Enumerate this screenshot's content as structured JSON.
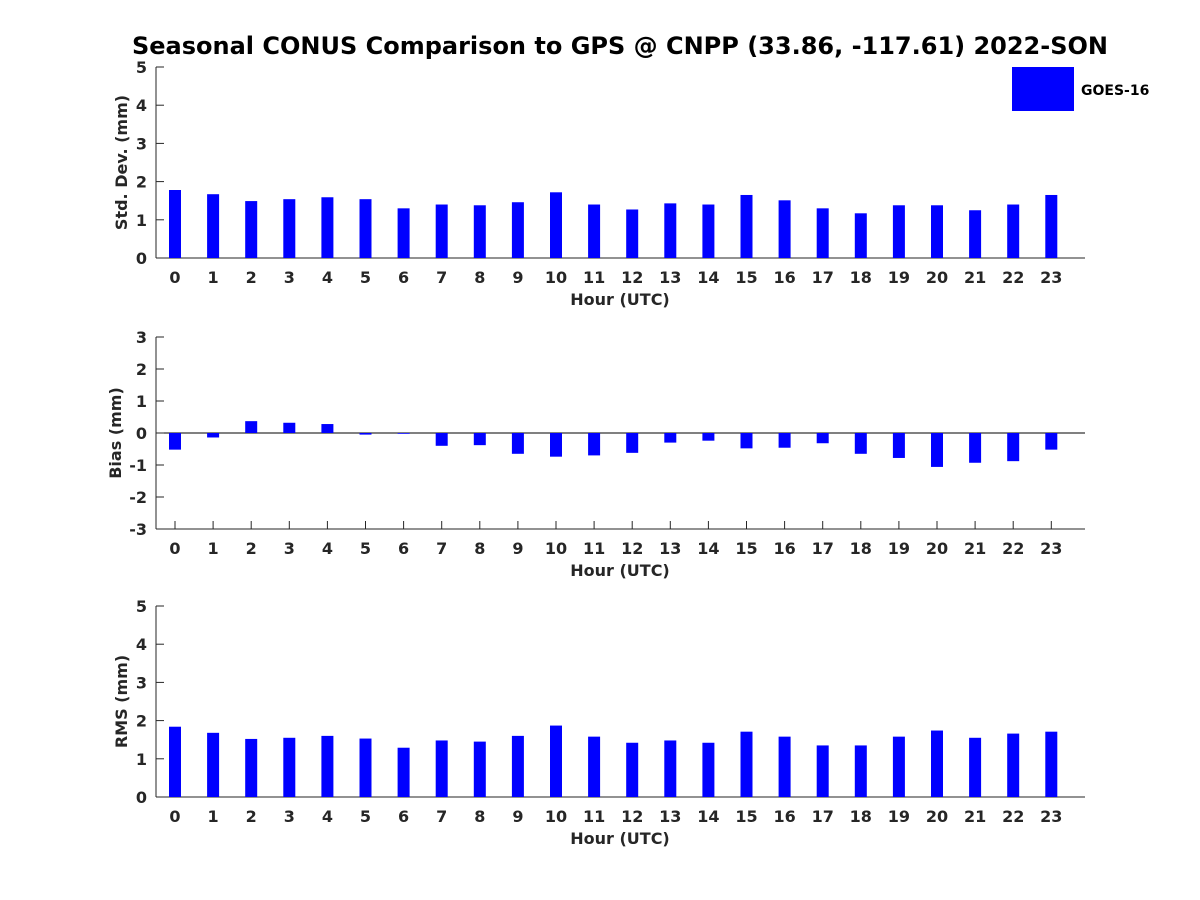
{
  "title": "Seasonal CONUS Comparison to GPS @ CNPP (33.86, -117.61) 2022-SON",
  "legend": {
    "label": "GOES-16",
    "color": "#0000ff"
  },
  "chart_data": [
    {
      "type": "bar",
      "xlabel": "Hour (UTC)",
      "ylabel": "Std. Dev. (mm)",
      "ylim": [
        0,
        5
      ],
      "yticks": [
        0,
        1,
        2,
        3,
        4,
        5
      ],
      "categories": [
        0,
        1,
        2,
        3,
        4,
        5,
        6,
        7,
        8,
        9,
        10,
        11,
        12,
        13,
        14,
        15,
        16,
        17,
        18,
        19,
        20,
        21,
        22,
        23
      ],
      "series": [
        {
          "name": "GOES-16",
          "color": "#0000ff",
          "values": [
            1.78,
            1.67,
            1.49,
            1.54,
            1.59,
            1.54,
            1.3,
            1.4,
            1.38,
            1.46,
            1.72,
            1.4,
            1.27,
            1.43,
            1.4,
            1.65,
            1.51,
            1.3,
            1.17,
            1.38,
            1.38,
            1.25,
            1.4,
            1.65
          ]
        }
      ],
      "legend": "top-right",
      "grid": false
    },
    {
      "type": "bar",
      "xlabel": "Hour (UTC)",
      "ylabel": "Bias (mm)",
      "ylim": [
        -3,
        3
      ],
      "yticks": [
        -3,
        -2,
        -1,
        0,
        1,
        2,
        3
      ],
      "categories": [
        0,
        1,
        2,
        3,
        4,
        5,
        6,
        7,
        8,
        9,
        10,
        11,
        12,
        13,
        14,
        15,
        16,
        17,
        18,
        19,
        20,
        21,
        22,
        23
      ],
      "series": [
        {
          "name": "GOES-16",
          "color": "#0000ff",
          "values": [
            -0.52,
            -0.14,
            0.37,
            0.32,
            0.28,
            -0.05,
            -0.02,
            -0.4,
            -0.38,
            -0.65,
            -0.74,
            -0.7,
            -0.62,
            -0.3,
            -0.24,
            -0.48,
            -0.46,
            -0.32,
            -0.65,
            -0.78,
            -1.06,
            -0.93,
            -0.88,
            -0.52
          ]
        }
      ],
      "grid": false
    },
    {
      "type": "bar",
      "xlabel": "Hour (UTC)",
      "ylabel": "RMS (mm)",
      "ylim": [
        0,
        5
      ],
      "yticks": [
        0,
        1,
        2,
        3,
        4,
        5
      ],
      "categories": [
        0,
        1,
        2,
        3,
        4,
        5,
        6,
        7,
        8,
        9,
        10,
        11,
        12,
        13,
        14,
        15,
        16,
        17,
        18,
        19,
        20,
        21,
        22,
        23
      ],
      "series": [
        {
          "name": "GOES-16",
          "color": "#0000ff",
          "values": [
            1.84,
            1.68,
            1.52,
            1.55,
            1.6,
            1.53,
            1.29,
            1.48,
            1.45,
            1.6,
            1.87,
            1.58,
            1.42,
            1.48,
            1.42,
            1.71,
            1.58,
            1.35,
            1.35,
            1.58,
            1.74,
            1.55,
            1.66,
            1.71
          ]
        }
      ],
      "grid": false
    }
  ]
}
